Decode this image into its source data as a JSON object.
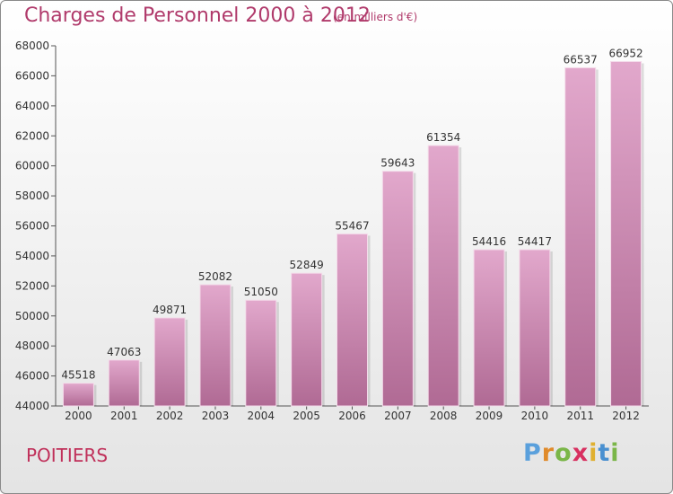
{
  "header": {
    "title": "Charges de Personnel 2000 à 2012",
    "subtitle": "(en milliers d'€)"
  },
  "footer": {
    "city": "POITIERS",
    "logo_letters": [
      "P",
      "r",
      "o",
      "x",
      "i",
      "t",
      "i"
    ],
    "logo_colors": [
      "#5aa0dc",
      "#e08a2a",
      "#7ab648",
      "#d83060",
      "#e0b030",
      "#4a90d0",
      "#7ab648"
    ]
  },
  "colors": {
    "bar_top": "#e2a8cc",
    "bar_bottom": "#b06a94",
    "title": "#b03a6b"
  },
  "chart_data": {
    "type": "bar",
    "title": "Charges de Personnel 2000 à 2012",
    "subtitle": "(en milliers d'€)",
    "categories": [
      "2000",
      "2001",
      "2002",
      "2003",
      "2004",
      "2005",
      "2006",
      "2007",
      "2008",
      "2009",
      "2010",
      "2011",
      "2012"
    ],
    "values": [
      45518,
      47063,
      49871,
      52082,
      51050,
      52849,
      55467,
      59643,
      61354,
      54416,
      54417,
      66537,
      66952
    ],
    "ylim": [
      44000,
      68000
    ],
    "yticks": [
      "44000",
      "46000",
      "48000",
      "50000",
      "52000",
      "54000",
      "56000",
      "58000",
      "60000",
      "62000",
      "64000",
      "66000",
      "68000"
    ],
    "grid": false,
    "data_labels": true
  }
}
